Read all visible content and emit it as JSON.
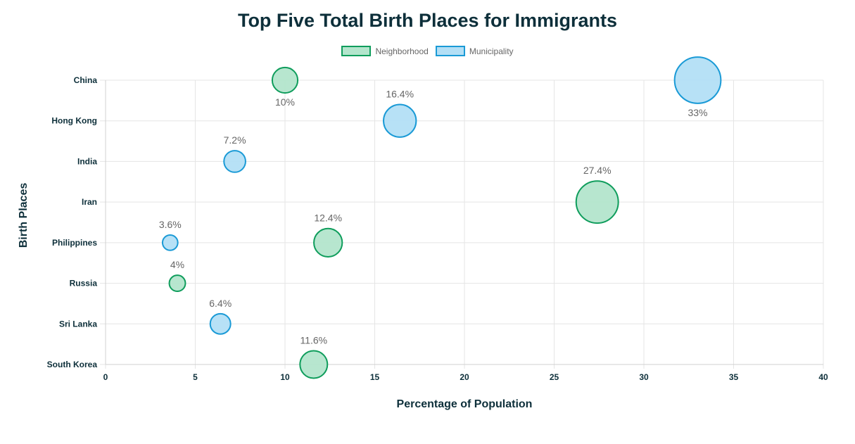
{
  "chart_data": {
    "type": "scatter",
    "title": "Top Five Total Birth Places for Immigrants",
    "xlabel": "Percentage of Population",
    "ylabel": "Birth Places",
    "xlim": [
      0,
      40
    ],
    "x_ticks": [
      "0",
      "5",
      "10",
      "15",
      "20",
      "25",
      "30",
      "35",
      "40"
    ],
    "categories": [
      "China",
      "Hong Kong",
      "India",
      "Iran",
      "Philippines",
      "Russia",
      "Sri Lanka",
      "South Korea"
    ],
    "legend_position": "top",
    "grid": true,
    "series": [
      {
        "name": "Neighborhood",
        "color": "#0f9d5c",
        "fill": "#b3e5cc",
        "points": [
          {
            "category": "China",
            "x": 10,
            "label": "10%",
            "label_position": "below"
          },
          {
            "category": "Iran",
            "x": 27.4,
            "label": "27.4%",
            "label_position": "above"
          },
          {
            "category": "Philippines",
            "x": 12.4,
            "label": "12.4%",
            "label_position": "above"
          },
          {
            "category": "Russia",
            "x": 4,
            "label": "4%",
            "label_position": "above"
          },
          {
            "category": "South Korea",
            "x": 11.6,
            "label": "11.6%",
            "label_position": "above"
          }
        ]
      },
      {
        "name": "Municipality",
        "color": "#1a9ad6",
        "fill": "#b3dff5",
        "points": [
          {
            "category": "China",
            "x": 33,
            "label": "33%",
            "label_position": "below"
          },
          {
            "category": "Hong Kong",
            "x": 16.4,
            "label": "16.4%",
            "label_position": "above"
          },
          {
            "category": "India",
            "x": 7.2,
            "label": "7.2%",
            "label_position": "above"
          },
          {
            "category": "Philippines",
            "x": 3.6,
            "label": "3.6%",
            "label_position": "above"
          },
          {
            "category": "Sri Lanka",
            "x": 6.4,
            "label": "6.4%",
            "label_position": "above"
          }
        ]
      }
    ]
  }
}
